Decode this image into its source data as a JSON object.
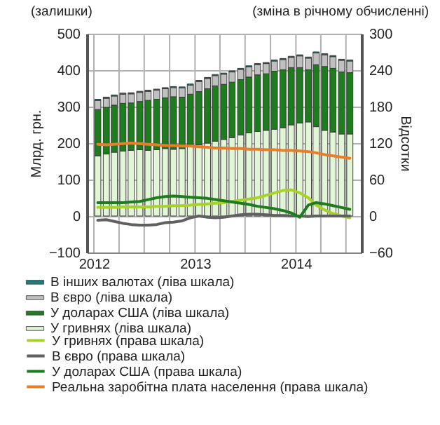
{
  "chart_data": {
    "type": "bar",
    "stacked": true,
    "annotations": [
      "(залишки)",
      "(зміна в річному обчисленні)"
    ],
    "ylabel": "Млрд. грн.",
    "y2label": "Відсотки",
    "x": [
      "2012-01-15",
      "2012-02-15",
      "2012-03-15",
      "2012-04-15",
      "2012-05-15",
      "2012-06-15",
      "2012-07-15",
      "2012-08-15",
      "2012-09-15",
      "2012-10-15",
      "2012-11-15",
      "2012-12-15",
      "2013-01-15",
      "2013-02-15",
      "2013-03-15",
      "2013-04-15",
      "2013-05-15",
      "2013-06-15",
      "2013-07-15",
      "2013-08-15",
      "2013-09-15",
      "2013-10-15",
      "2013-11-15",
      "2013-12-15",
      "2014-01-15",
      "2014-02-15",
      "2014-03-15",
      "2014-04-15",
      "2014-05-15",
      "2014-06-15",
      "2014-07-15"
    ],
    "xlim": [
      "2012-01-01",
      "2014-08-01"
    ],
    "xticks": [
      "2012",
      {
        "value": "2012-04",
        "label": null
      },
      {
        "value": "2012-07",
        "label": null
      },
      {
        "value": "2012-10",
        "label": null
      },
      "2013",
      {
        "value": "2013-04",
        "label": null
      },
      {
        "value": "2013-07",
        "label": null
      },
      {
        "value": "2013-10",
        "label": null
      },
      "2014",
      {
        "value": "2014-04",
        "label": null
      },
      {
        "value": "2014-07",
        "label": null
      }
    ],
    "ylim": [
      -100,
      500
    ],
    "yticks": [
      -100,
      0,
      100,
      200,
      300,
      400,
      500
    ],
    "y2lim": [
      -60,
      300
    ],
    "y2ticks": [
      -60,
      0,
      60,
      120,
      180,
      240,
      300
    ],
    "grid": true,
    "legend": "bottom",
    "line_style": "solid",
    "series": [
      {
        "name": "У гривнях (ліва шкала)",
        "color": "#e2f5d6",
        "values": [
          165,
          170,
          175,
          178,
          180,
          182,
          180,
          182,
          185,
          183,
          185,
          190,
          195,
          200,
          205,
          210,
          215,
          222,
          228,
          232,
          235,
          238,
          242,
          250,
          255,
          258,
          245,
          235,
          230,
          225,
          225
        ]
      },
      {
        "name": "У доларах США (ліва шкала)",
        "color": "#1e7b1e",
        "values": [
          127,
          128,
          129,
          131,
          130,
          132,
          137,
          138,
          139,
          144,
          141,
          144,
          146,
          149,
          152,
          151,
          152,
          152,
          153,
          155,
          155,
          159,
          159,
          157,
          152,
          143,
          170,
          175,
          175,
          170,
          168
        ]
      },
      {
        "name": "В євро (ліва шкала)",
        "color": "#c0c0c0",
        "values": [
          25,
          25,
          25,
          25,
          25,
          25,
          25,
          25,
          25,
          25,
          25,
          25,
          28,
          28,
          28,
          28,
          28,
          28,
          28,
          28,
          28,
          28,
          28,
          28,
          32,
          32,
          32,
          32,
          32,
          32,
          32
        ]
      },
      {
        "name": "В інших валютах (ліва шкала)",
        "color": "#1f7a7a",
        "values": [
          3,
          3,
          3,
          3,
          3,
          3,
          3,
          3,
          3,
          3,
          3,
          3,
          3,
          3,
          3,
          3,
          3,
          3,
          3,
          3,
          3,
          3,
          3,
          3,
          3,
          3,
          3,
          3,
          3,
          3,
          3
        ]
      },
      {
        "name": "У гривнях (права шкала)",
        "type": "line",
        "axis": "y2",
        "color": "#a8d22a",
        "values": [
          14,
          14,
          14,
          15,
          15,
          15,
          15,
          16,
          16,
          17,
          17,
          18,
          19,
          20,
          21,
          22,
          24,
          26,
          28,
          30,
          34,
          38,
          42,
          43,
          38,
          30,
          18,
          10,
          4,
          0,
          -3
        ]
      },
      {
        "name": "В євро (права шкала)",
        "type": "line",
        "axis": "y2",
        "color": "#606060",
        "values": [
          -7,
          -6,
          -9,
          -12,
          -14,
          -15,
          -15,
          -14,
          -11,
          -10,
          -8,
          -3,
          0,
          -2,
          -3,
          -2,
          0,
          2,
          3,
          3,
          2,
          1,
          1,
          0,
          0,
          -1,
          0,
          0,
          0,
          0,
          0
        ]
      },
      {
        "name": "У доларах США (права шкала)",
        "type": "line",
        "axis": "y2",
        "color": "#1e7b1e",
        "values": [
          22,
          22,
          22,
          22,
          23,
          24,
          27,
          30,
          32,
          33,
          32,
          31,
          30,
          29,
          27,
          25,
          23,
          21,
          19,
          16,
          14,
          12,
          9,
          5,
          -2,
          18,
          22,
          20,
          17,
          14,
          11
        ]
      },
      {
        "name": "Реальна заробітна плата населення (права шкала)",
        "type": "line",
        "axis": "y2",
        "color": "#e87d2a",
        "values": [
          118,
          117,
          118,
          119,
          120,
          119,
          118,
          117,
          116,
          116,
          115,
          115,
          114,
          113,
          112,
          112,
          111,
          111,
          110,
          110,
          109,
          109,
          108,
          108,
          107,
          106,
          104,
          101,
          99,
          97,
          95
        ]
      }
    ]
  }
}
